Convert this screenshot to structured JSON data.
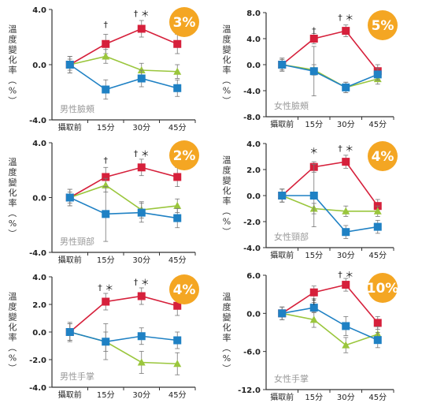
{
  "chart_data": [
    {
      "type": "line",
      "subtitle": "男性臉頰",
      "ylabel": "溫度變化率（%）",
      "badge": "3%",
      "categories": [
        "攝取前",
        "15分",
        "30分",
        "45分"
      ],
      "ylim": [
        -4,
        4
      ],
      "yticks": [
        "4.0",
        "0.0",
        "-4.0"
      ],
      "series": [
        {
          "color": "#d6203b",
          "marker": "square",
          "values": [
            0.0,
            1.5,
            2.6,
            1.5
          ],
          "errors": [
            0.6,
            0.7,
            0.6,
            0.7
          ]
        },
        {
          "color": "#9ac63c",
          "marker": "triangle",
          "values": [
            0.0,
            0.6,
            -0.4,
            -0.5
          ],
          "errors": [
            0.4,
            0.5,
            0.5,
            0.5
          ]
        },
        {
          "color": "#1f81c4",
          "marker": "square",
          "values": [
            0.0,
            -1.8,
            -1.0,
            -1.7
          ],
          "errors": [
            0.6,
            0.7,
            0.6,
            0.6
          ]
        }
      ],
      "annotations": [
        {
          "x": 1,
          "y": 2.7,
          "text": "†"
        },
        {
          "x": 2,
          "y": 3.5,
          "text": "† ＊"
        }
      ]
    },
    {
      "type": "line",
      "subtitle": "女性臉頰",
      "ylabel": "溫度變化率（%）",
      "badge": "5%",
      "categories": [
        "攝取前",
        "15分",
        "30分",
        "45分"
      ],
      "ylim": [
        -8,
        8
      ],
      "yticks": [
        "8.0",
        "4.0",
        "0.0",
        "-4.0",
        "-8.0"
      ],
      "series": [
        {
          "color": "#d6203b",
          "marker": "square",
          "values": [
            0.0,
            4.0,
            5.2,
            -1.0
          ],
          "errors": [
            1.0,
            0.8,
            0.9,
            1.0
          ]
        },
        {
          "color": "#9ac63c",
          "marker": "triangle",
          "values": [
            0.0,
            -0.8,
            -3.5,
            -2.2
          ],
          "errors": [
            0.8,
            0.8,
            0.8,
            0.8
          ]
        },
        {
          "color": "#1f81c4",
          "marker": "square",
          "values": [
            0.0,
            -1.0,
            -3.5,
            -1.5
          ],
          "errors": [
            1.0,
            3.8,
            0.8,
            0.9
          ]
        }
      ],
      "annotations": [
        {
          "x": 1,
          "y": 4.8,
          "text": "†"
        },
        {
          "x": 2,
          "y": 6.8,
          "text": "† ＊"
        }
      ]
    },
    {
      "type": "line",
      "subtitle": "男性頸部",
      "ylabel": "溫度變化率（%）",
      "badge": "2%",
      "categories": [
        "攝取前",
        "15分",
        "30分",
        "45分"
      ],
      "ylim": [
        -4,
        4
      ],
      "yticks": [
        "4.0",
        "0.0",
        "-4.0"
      ],
      "series": [
        {
          "color": "#d6203b",
          "marker": "square",
          "values": [
            0.0,
            1.5,
            2.2,
            1.5
          ],
          "errors": [
            0.6,
            0.7,
            0.6,
            0.7
          ]
        },
        {
          "color": "#9ac63c",
          "marker": "triangle",
          "values": [
            0.0,
            0.9,
            -0.9,
            -0.6
          ],
          "errors": [
            0.4,
            0.5,
            0.6,
            0.5
          ]
        },
        {
          "color": "#1f81c4",
          "marker": "square",
          "values": [
            0.0,
            -1.2,
            -1.1,
            -1.5
          ],
          "errors": [
            0.6,
            2.0,
            0.7,
            0.7
          ]
        }
      ],
      "annotations": [
        {
          "x": 1,
          "y": 2.5,
          "text": "†"
        },
        {
          "x": 2,
          "y": 3.0,
          "text": "† ＊"
        }
      ]
    },
    {
      "type": "line",
      "subtitle": "女性頸部",
      "ylabel": "溫度變化率（%）",
      "badge": "4%",
      "categories": [
        "攝取前",
        "15分",
        "30分",
        "45分"
      ],
      "ylim": [
        -4,
        4
      ],
      "yticks": [
        "4.0",
        "2.0",
        "0.0",
        "-2.0",
        "-4.0"
      ],
      "series": [
        {
          "color": "#d6203b",
          "marker": "square",
          "values": [
            0.0,
            2.2,
            2.6,
            -0.8
          ],
          "errors": [
            0.5,
            0.4,
            0.5,
            0.5
          ]
        },
        {
          "color": "#9ac63c",
          "marker": "triangle",
          "values": [
            0.0,
            -1.0,
            -1.2,
            -1.2
          ],
          "errors": [
            0.5,
            0.4,
            0.4,
            0.4
          ]
        },
        {
          "color": "#1f81c4",
          "marker": "square",
          "values": [
            0.0,
            0.0,
            -2.8,
            -2.4
          ],
          "errors": [
            0.5,
            2.4,
            0.5,
            0.5
          ]
        }
      ],
      "annotations": [
        {
          "x": 1,
          "y": 3.2,
          "text": "＊"
        },
        {
          "x": 2,
          "y": 3.4,
          "text": "† ＊"
        }
      ]
    },
    {
      "type": "line",
      "subtitle": "男性手掌",
      "ylabel": "溫度變化率（%）",
      "badge": "4%",
      "categories": [
        "攝取前",
        "15分",
        "30分",
        "45分"
      ],
      "ylim": [
        -4,
        4
      ],
      "yticks": [
        "4.0",
        "2.0",
        "0.0",
        "-2.0",
        "-4.0"
      ],
      "series": [
        {
          "color": "#d6203b",
          "marker": "square",
          "values": [
            0.0,
            2.2,
            2.6,
            1.9
          ],
          "errors": [
            0.7,
            0.6,
            0.6,
            0.7
          ]
        },
        {
          "color": "#9ac63c",
          "marker": "triangle",
          "values": [
            0.0,
            -0.7,
            -2.2,
            -2.3
          ],
          "errors": [
            0.6,
            0.7,
            0.8,
            0.8
          ]
        },
        {
          "color": "#1f81c4",
          "marker": "square",
          "values": [
            0.0,
            -0.7,
            -0.3,
            -0.6
          ],
          "errors": [
            0.6,
            1.3,
            0.6,
            0.6
          ]
        }
      ],
      "annotations": [
        {
          "x": 1,
          "y": 3.0,
          "text": "† ＊"
        },
        {
          "x": 2,
          "y": 3.4,
          "text": "† ＊"
        }
      ]
    },
    {
      "type": "line",
      "subtitle": "女性手掌",
      "ylabel": "溫度變化率（%）",
      "badge": "10%",
      "categories": [
        "攝取前",
        "15分",
        "30分",
        "45分"
      ],
      "ylim": [
        -12,
        6
      ],
      "yticks": [
        "6.0",
        "0.0",
        "-6.0",
        "-12.0"
      ],
      "series": [
        {
          "color": "#d6203b",
          "marker": "square",
          "values": [
            0.0,
            3.3,
            4.5,
            -1.5
          ],
          "errors": [
            1.0,
            1.0,
            1.0,
            1.0
          ]
        },
        {
          "color": "#9ac63c",
          "marker": "triangle",
          "values": [
            0.0,
            -1.0,
            -5.0,
            -3.3
          ],
          "errors": [
            1.0,
            1.2,
            1.2,
            1.2
          ]
        },
        {
          "color": "#1f81c4",
          "marker": "square",
          "values": [
            0.0,
            0.9,
            -2.0,
            -4.2
          ],
          "errors": [
            1.0,
            0.8,
            1.5,
            1.2
          ]
        }
      ],
      "annotations": [
        {
          "x": 1,
          "y": 1.4,
          "text": "†"
        },
        {
          "x": 2,
          "y": 5.6,
          "text": "† ＊"
        }
      ]
    }
  ]
}
